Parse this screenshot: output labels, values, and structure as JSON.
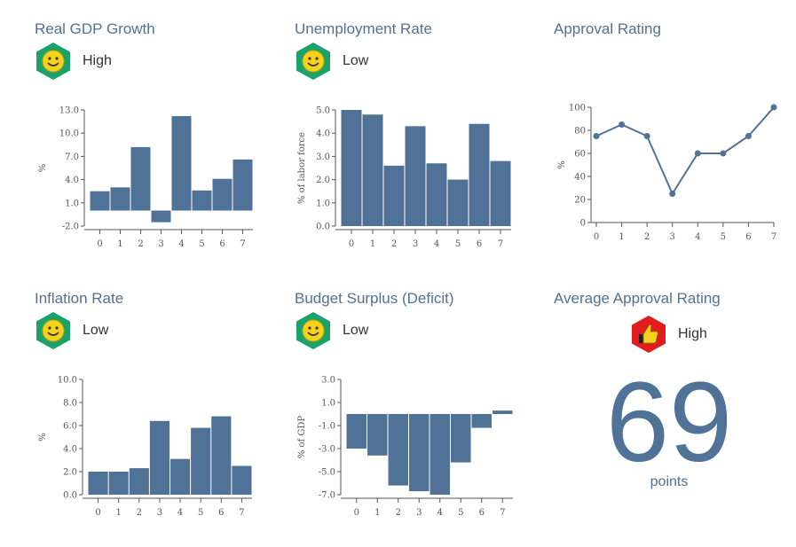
{
  "colors": {
    "title": "#4f7296",
    "bar": "#4f7296",
    "axis": "#555555",
    "good": "#1aa26a",
    "bad": "#e01c1c",
    "face": "#f7d21b"
  },
  "panels": {
    "gdp": {
      "title": "Real GDP Growth",
      "status": "High",
      "icon": "smiley-face-icon"
    },
    "unemployment": {
      "title": "Unemployment Rate",
      "status": "Low",
      "icon": "smiley-face-icon"
    },
    "approval": {
      "title": "Approval Rating"
    },
    "inflation": {
      "title": "Inflation Rate",
      "status": "Low",
      "icon": "smiley-face-icon"
    },
    "budget": {
      "title": "Budget Surplus (Deficit)",
      "status": "Low",
      "icon": "smiley-face-icon"
    },
    "avg": {
      "title": "Average Approval Rating",
      "status": "High",
      "icon": "thumbs-up-icon",
      "value": "69",
      "unit": "points"
    }
  },
  "chart_data": [
    {
      "id": "gdp",
      "type": "bar",
      "title": "Real GDP Growth",
      "ylabel": "%",
      "categories": [
        "0",
        "1",
        "2",
        "3",
        "4",
        "5",
        "6",
        "7"
      ],
      "values": [
        2.5,
        3.0,
        8.2,
        -1.5,
        12.2,
        2.6,
        4.1,
        6.6
      ],
      "ylim": [
        -2.0,
        13.0
      ],
      "yticks": [
        -2.0,
        1.0,
        4.0,
        7.0,
        10.0,
        13.0
      ],
      "ytick_labels": [
        "-2.0",
        "1.0",
        "4.0",
        "7.0",
        "10.0",
        "13.0"
      ]
    },
    {
      "id": "unemployment",
      "type": "bar",
      "title": "Unemployment Rate",
      "ylabel": "% of labor force",
      "categories": [
        "0",
        "1",
        "2",
        "3",
        "4",
        "5",
        "6",
        "7"
      ],
      "values": [
        5.0,
        4.8,
        2.6,
        4.3,
        2.7,
        2.0,
        4.4,
        2.8
      ],
      "ylim": [
        0,
        5.0
      ],
      "yticks": [
        0,
        1.0,
        2.0,
        3.0,
        4.0,
        5.0
      ],
      "ytick_labels": [
        "0.0",
        "1.0",
        "2.0",
        "3.0",
        "4.0",
        "5.0"
      ]
    },
    {
      "id": "approval",
      "type": "line",
      "title": "Approval Rating",
      "ylabel": "%",
      "categories": [
        "0",
        "1",
        "2",
        "3",
        "4",
        "5",
        "6",
        "7"
      ],
      "values": [
        75,
        85,
        75,
        25,
        60,
        60,
        75,
        100
      ],
      "ylim": [
        0,
        100
      ],
      "yticks": [
        0,
        20,
        40,
        60,
        80,
        100
      ],
      "ytick_labels": [
        "0",
        "20",
        "40",
        "60",
        "80",
        "100"
      ]
    },
    {
      "id": "inflation",
      "type": "bar",
      "title": "Inflation Rate",
      "ylabel": "%",
      "categories": [
        "0",
        "1",
        "2",
        "3",
        "4",
        "5",
        "6",
        "7"
      ],
      "values": [
        2.0,
        2.0,
        2.3,
        6.4,
        3.1,
        5.8,
        6.8,
        2.5
      ],
      "ylim": [
        0,
        10.0
      ],
      "yticks": [
        0,
        2.0,
        4.0,
        6.0,
        8.0,
        10.0
      ],
      "ytick_labels": [
        "0.0",
        "2.0",
        "4.0",
        "6.0",
        "8.0",
        "10.0"
      ]
    },
    {
      "id": "budget",
      "type": "bar",
      "title": "Budget Surplus (Deficit)",
      "ylabel": "% of GDP",
      "categories": [
        "0",
        "1",
        "2",
        "3",
        "4",
        "5",
        "6",
        "7"
      ],
      "values": [
        -3.0,
        -3.6,
        -6.2,
        -6.7,
        -7.0,
        -4.2,
        -1.2,
        0.3
      ],
      "ylim": [
        -7.0,
        3.0
      ],
      "yticks": [
        -7.0,
        -5.0,
        -3.0,
        -1.0,
        1.0,
        3.0
      ],
      "ytick_labels": [
        "-7.0",
        "-5.0",
        "-3.0",
        "-1.0",
        "1.0",
        "3.0"
      ]
    }
  ]
}
